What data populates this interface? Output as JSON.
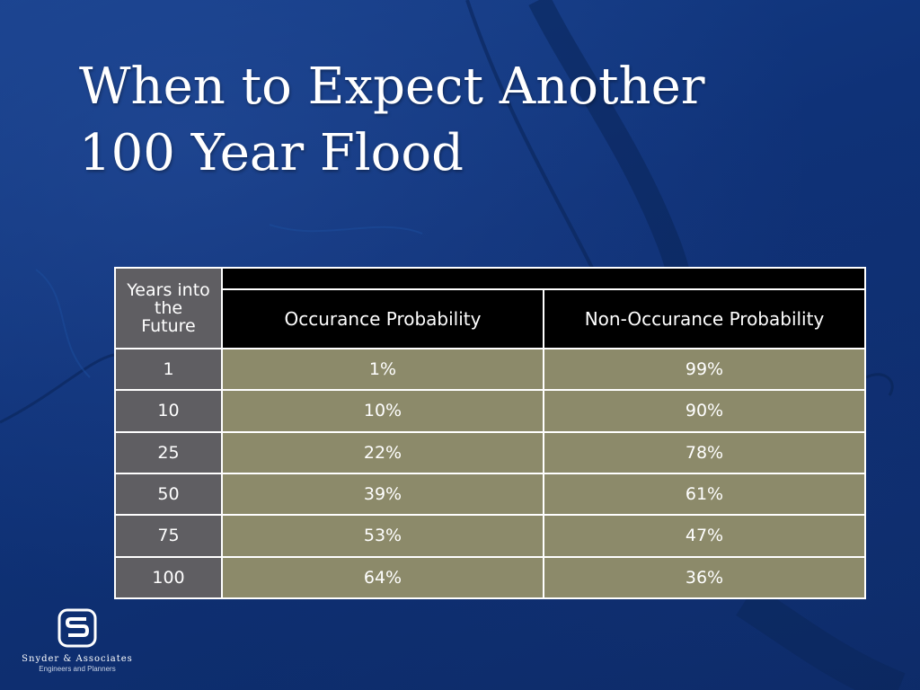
{
  "slide": {
    "title_line1": "When to Expect Another",
    "title_line2": "100 Year Flood"
  },
  "table": {
    "header_col1_lines": [
      "Years into",
      "the",
      "Future"
    ],
    "header_col2": "Occurance Probability",
    "header_col3": "Non-Occurance Probability",
    "rows": [
      {
        "years": "1",
        "occurance": "1%",
        "non_occurance": "99%"
      },
      {
        "years": "10",
        "occurance": "10%",
        "non_occurance": "90%"
      },
      {
        "years": "25",
        "occurance": "22%",
        "non_occurance": "78%"
      },
      {
        "years": "50",
        "occurance": "39%",
        "non_occurance": "61%"
      },
      {
        "years": "75",
        "occurance": "53%",
        "non_occurance": "47%"
      },
      {
        "years": "100",
        "occurance": "64%",
        "non_occurance": "36%"
      }
    ]
  },
  "logo": {
    "name": "Snyder & Associates",
    "tagline": "Engineers and Planners"
  },
  "colors": {
    "background": "#0f3278",
    "year_cell": "#5f5e62",
    "value_cell": "#8c8a6a",
    "header_cell": "#000000"
  }
}
